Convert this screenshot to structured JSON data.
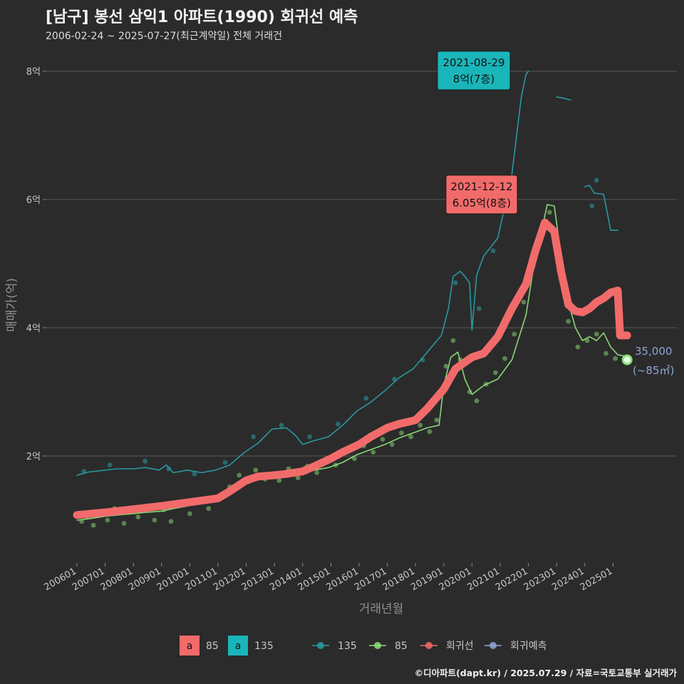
{
  "header": {
    "title": "[남구] 봉선 삼익1 아파트(1990) 회귀선 예측",
    "subtitle": "2006-02-24 ~ 2025-07-27(최근계약일) 전체 거래건"
  },
  "footer": {
    "credit": "©디아파트(dapt.kr) / 2025.07.29 / 자료=국토교통부 실거래가"
  },
  "colors": {
    "background": "#2b2b2b",
    "grid": "#5a5a5a",
    "series_85": "#8ee07a",
    "series_135": "#2a9da6",
    "regression": "#f26b6b",
    "forecast": "#8fa7d6"
  },
  "chart_data": {
    "type": "line",
    "xlabel": "거래년월",
    "ylabel": "매매가(억)",
    "x_range": [
      "2006-01",
      "2025-12"
    ],
    "ylim": [
      0.4,
      8.4
    ],
    "y_ticks": [
      {
        "value": 2,
        "label": "2억"
      },
      {
        "value": 4,
        "label": "4억"
      },
      {
        "value": 6,
        "label": "6억"
      },
      {
        "value": 8,
        "label": "8억"
      }
    ],
    "x_ticks": [
      "200601",
      "200701",
      "200801",
      "200901",
      "201001",
      "201101",
      "201201",
      "201301",
      "201401",
      "201501",
      "201601",
      "201701",
      "201801",
      "201901",
      "202001",
      "202101",
      "202201",
      "202301",
      "202401",
      "202501"
    ],
    "series": [
      {
        "name": "135",
        "type": "line",
        "color": "#2a9da6",
        "points": [
          [
            "2006-01",
            1.7
          ],
          [
            "2006-06",
            1.75
          ],
          [
            "2007-01",
            1.78
          ],
          [
            "2007-06",
            1.8
          ],
          [
            "2008-01",
            1.8
          ],
          [
            "2008-06",
            1.82
          ],
          [
            "2008-12",
            1.78
          ],
          [
            "2009-03",
            1.86
          ],
          [
            "2009-06",
            1.74
          ],
          [
            "2009-12",
            1.78
          ],
          [
            "2010-06",
            1.74
          ],
          [
            "2010-12",
            1.78
          ],
          [
            "2011-06",
            1.86
          ],
          [
            "2011-12",
            2.05
          ],
          [
            "2012-06",
            2.2
          ],
          [
            "2012-12",
            2.42
          ],
          [
            "2013-06",
            2.44
          ],
          [
            "2013-10",
            2.32
          ],
          [
            "2014-01",
            2.18
          ],
          [
            "2014-06",
            2.24
          ],
          [
            "2014-12",
            2.3
          ],
          [
            "2015-06",
            2.48
          ],
          [
            "2015-12",
            2.7
          ],
          [
            "2016-06",
            2.84
          ],
          [
            "2016-12",
            3.02
          ],
          [
            "2017-06",
            3.22
          ],
          [
            "2017-12",
            3.36
          ],
          [
            "2018-06",
            3.62
          ],
          [
            "2018-12",
            3.88
          ],
          [
            "2019-03",
            4.3
          ],
          [
            "2019-05",
            4.8
          ],
          [
            "2019-08",
            4.88
          ],
          [
            "2019-10",
            4.8
          ],
          [
            "2019-12",
            4.7
          ],
          [
            "2020-01",
            3.96
          ],
          [
            "2020-03",
            4.82
          ],
          [
            "2020-06",
            5.12
          ],
          [
            "2020-12",
            5.4
          ],
          [
            "2021-03",
            5.9
          ],
          [
            "2021-06",
            6.4
          ],
          [
            "2021-08",
            7.0
          ],
          [
            "2021-10",
            7.6
          ],
          [
            "2021-12",
            7.95
          ],
          [
            "2022-01",
            8.0
          ]
        ]
      },
      {
        "name": "135",
        "type": "line",
        "color": "#2a9da6",
        "points": [
          [
            "2023-01",
            7.6
          ],
          [
            "2023-04",
            7.58
          ],
          [
            "2023-07",
            7.55
          ]
        ]
      },
      {
        "name": "135",
        "type": "line",
        "color": "#2a9da6",
        "points": [
          [
            "2024-01",
            6.2
          ],
          [
            "2024-03",
            6.22
          ],
          [
            "2024-05",
            6.1
          ],
          [
            "2024-09",
            6.08
          ],
          [
            "2024-12",
            5.52
          ],
          [
            "2025-03",
            5.52
          ]
        ]
      },
      {
        "name": "85",
        "type": "line",
        "color": "#8ee07a",
        "points": [
          [
            "2006-01",
            1.0
          ],
          [
            "2006-06",
            1.02
          ],
          [
            "2007-01",
            1.06
          ],
          [
            "2007-06",
            1.08
          ],
          [
            "2008-01",
            1.1
          ],
          [
            "2008-06",
            1.12
          ],
          [
            "2009-01",
            1.14
          ],
          [
            "2009-06",
            1.18
          ],
          [
            "2009-12",
            1.22
          ],
          [
            "2010-06",
            1.28
          ],
          [
            "2010-12",
            1.3
          ],
          [
            "2011-06",
            1.4
          ],
          [
            "2011-12",
            1.58
          ],
          [
            "2012-06",
            1.66
          ],
          [
            "2012-12",
            1.68
          ],
          [
            "2013-06",
            1.68
          ],
          [
            "2013-12",
            1.72
          ],
          [
            "2014-06",
            1.78
          ],
          [
            "2014-12",
            1.82
          ],
          [
            "2015-06",
            1.9
          ],
          [
            "2015-12",
            2.02
          ],
          [
            "2016-06",
            2.1
          ],
          [
            "2016-12",
            2.18
          ],
          [
            "2017-06",
            2.28
          ],
          [
            "2017-12",
            2.36
          ],
          [
            "2018-06",
            2.44
          ],
          [
            "2018-11",
            2.48
          ],
          [
            "2019-01",
            3.1
          ],
          [
            "2019-04",
            3.54
          ],
          [
            "2019-07",
            3.62
          ],
          [
            "2019-10",
            3.2
          ],
          [
            "2020-01",
            2.96
          ],
          [
            "2020-06",
            3.1
          ],
          [
            "2020-12",
            3.2
          ],
          [
            "2021-06",
            3.5
          ],
          [
            "2021-12",
            4.2
          ],
          [
            "2022-03",
            4.9
          ],
          [
            "2022-06",
            5.4
          ],
          [
            "2022-09",
            5.92
          ],
          [
            "2022-12",
            5.9
          ],
          [
            "2023-03",
            5.1
          ],
          [
            "2023-06",
            4.4
          ],
          [
            "2023-09",
            4.0
          ],
          [
            "2023-12",
            3.8
          ],
          [
            "2024-03",
            3.86
          ],
          [
            "2024-06",
            3.8
          ],
          [
            "2024-09",
            3.92
          ],
          [
            "2024-12",
            3.7
          ],
          [
            "2025-03",
            3.58
          ],
          [
            "2025-07",
            3.55
          ]
        ]
      },
      {
        "name": "회귀선",
        "type": "regression",
        "color": "#f26b6b",
        "points": [
          [
            "2006-01",
            1.08
          ],
          [
            "2007-01",
            1.12
          ],
          [
            "2008-01",
            1.17
          ],
          [
            "2009-01",
            1.22
          ],
          [
            "2010-01",
            1.28
          ],
          [
            "2011-01",
            1.34
          ],
          [
            "2011-06",
            1.45
          ],
          [
            "2012-01",
            1.62
          ],
          [
            "2012-06",
            1.68
          ],
          [
            "2013-01",
            1.7
          ],
          [
            "2013-06",
            1.72
          ],
          [
            "2014-01",
            1.76
          ],
          [
            "2014-06",
            1.84
          ],
          [
            "2015-01",
            1.96
          ],
          [
            "2015-06",
            2.06
          ],
          [
            "2016-01",
            2.18
          ],
          [
            "2016-06",
            2.3
          ],
          [
            "2017-01",
            2.44
          ],
          [
            "2017-06",
            2.5
          ],
          [
            "2018-01",
            2.56
          ],
          [
            "2018-06",
            2.74
          ],
          [
            "2019-01",
            3.04
          ],
          [
            "2019-06",
            3.36
          ],
          [
            "2020-01",
            3.54
          ],
          [
            "2020-06",
            3.6
          ],
          [
            "2020-12",
            3.86
          ],
          [
            "2021-06",
            4.3
          ],
          [
            "2021-12",
            4.68
          ],
          [
            "2022-04",
            5.2
          ],
          [
            "2022-08",
            5.64
          ],
          [
            "2022-12",
            5.5
          ],
          [
            "2023-03",
            4.86
          ],
          [
            "2023-06",
            4.36
          ],
          [
            "2023-09",
            4.26
          ],
          [
            "2023-12",
            4.24
          ],
          [
            "2024-03",
            4.3
          ],
          [
            "2024-06",
            4.4
          ],
          [
            "2024-09",
            4.46
          ],
          [
            "2024-12",
            4.55
          ],
          [
            "2025-03",
            4.58
          ],
          [
            "2025-04",
            3.88
          ],
          [
            "2025-07",
            3.88
          ]
        ]
      }
    ],
    "scatter_points": {
      "85": [
        [
          "2006-03",
          0.98
        ],
        [
          "2006-05",
          1.05
        ],
        [
          "2006-08",
          0.92
        ],
        [
          "2006-11",
          1.1
        ],
        [
          "2007-02",
          1.0
        ],
        [
          "2007-05",
          1.18
        ],
        [
          "2007-09",
          0.95
        ],
        [
          "2007-12",
          1.14
        ],
        [
          "2008-03",
          1.05
        ],
        [
          "2008-07",
          1.22
        ],
        [
          "2008-10",
          1.0
        ],
        [
          "2009-02",
          1.16
        ],
        [
          "2009-05",
          0.98
        ],
        [
          "2009-09",
          1.26
        ],
        [
          "2010-01",
          1.1
        ],
        [
          "2010-05",
          1.32
        ],
        [
          "2010-09",
          1.18
        ],
        [
          "2011-02",
          1.36
        ],
        [
          "2011-06",
          1.52
        ],
        [
          "2011-10",
          1.7
        ],
        [
          "2012-02",
          1.6
        ],
        [
          "2012-05",
          1.78
        ],
        [
          "2012-09",
          1.64
        ],
        [
          "2012-12",
          1.72
        ],
        [
          "2013-03",
          1.62
        ],
        [
          "2013-07",
          1.8
        ],
        [
          "2013-11",
          1.66
        ],
        [
          "2014-03",
          1.84
        ],
        [
          "2014-07",
          1.74
        ],
        [
          "2014-11",
          1.9
        ],
        [
          "2015-03",
          1.86
        ],
        [
          "2015-07",
          2.06
        ],
        [
          "2015-11",
          1.96
        ],
        [
          "2016-03",
          2.16
        ],
        [
          "2016-07",
          2.06
        ],
        [
          "2016-11",
          2.26
        ],
        [
          "2017-03",
          2.18
        ],
        [
          "2017-07",
          2.36
        ],
        [
          "2017-11",
          2.3
        ],
        [
          "2018-03",
          2.48
        ],
        [
          "2018-07",
          2.38
        ],
        [
          "2018-10",
          2.56
        ],
        [
          "2019-02",
          3.4
        ],
        [
          "2019-05",
          3.8
        ],
        [
          "2019-08",
          3.5
        ],
        [
          "2019-12",
          3.0
        ],
        [
          "2020-03",
          2.86
        ],
        [
          "2020-07",
          3.12
        ],
        [
          "2020-11",
          3.3
        ],
        [
          "2021-03",
          3.52
        ],
        [
          "2021-07",
          3.9
        ],
        [
          "2021-11",
          4.4
        ],
        [
          "2022-03",
          4.96
        ],
        [
          "2022-07",
          5.5
        ],
        [
          "2022-10",
          5.8
        ],
        [
          "2023-02",
          4.9
        ],
        [
          "2023-06",
          4.1
        ],
        [
          "2023-10",
          3.7
        ],
        [
          "2024-02",
          3.8
        ],
        [
          "2024-06",
          3.9
        ],
        [
          "2024-10",
          3.6
        ],
        [
          "2025-02",
          3.52
        ],
        [
          "2025-06",
          3.48
        ]
      ],
      "135": [
        [
          "2006-04",
          1.76
        ],
        [
          "2007-03",
          1.86
        ],
        [
          "2008-06",
          1.92
        ],
        [
          "2009-04",
          1.8
        ],
        [
          "2010-03",
          1.72
        ],
        [
          "2011-04",
          1.9
        ],
        [
          "2012-04",
          2.3
        ],
        [
          "2013-04",
          2.48
        ],
        [
          "2014-04",
          2.3
        ],
        [
          "2015-04",
          2.5
        ],
        [
          "2016-04",
          2.9
        ],
        [
          "2017-04",
          3.2
        ],
        [
          "2018-04",
          3.5
        ],
        [
          "2019-06",
          4.7
        ],
        [
          "2020-04",
          4.3
        ],
        [
          "2020-10",
          5.2
        ],
        [
          "2021-04",
          6.1
        ],
        [
          "2024-04",
          5.9
        ],
        [
          "2024-06",
          6.3
        ]
      ]
    },
    "annotations": [
      {
        "date": "2021-08-29",
        "label_date": "2021-08-29",
        "label_value": "8억(7층)",
        "value": 8.0,
        "color": "#19b5b8"
      },
      {
        "date": "2021-12-12",
        "label_date": "2021-12-12",
        "label_value": "6.05억(8층)",
        "value": 6.05,
        "color": "#f26b6b"
      }
    ],
    "forecast": {
      "date": "2025-07",
      "value": 3.5,
      "label_price": "35,000",
      "label_area": "(~85㎡)"
    },
    "legend": {
      "fill_keys": [
        {
          "text": "85",
          "color": "#f26b6b",
          "glyph": "a"
        },
        {
          "text": "135",
          "color": "#19b5b8",
          "glyph": "a"
        }
      ],
      "line_keys": [
        {
          "text": "135",
          "color": "#2a9da6"
        },
        {
          "text": "85",
          "color": "#8ee07a"
        },
        {
          "text": "회귀선",
          "color": "#f26b6b"
        },
        {
          "text": "회귀예측",
          "color": "#8fa7d6"
        }
      ],
      "position": "bottom"
    },
    "grid": true
  }
}
